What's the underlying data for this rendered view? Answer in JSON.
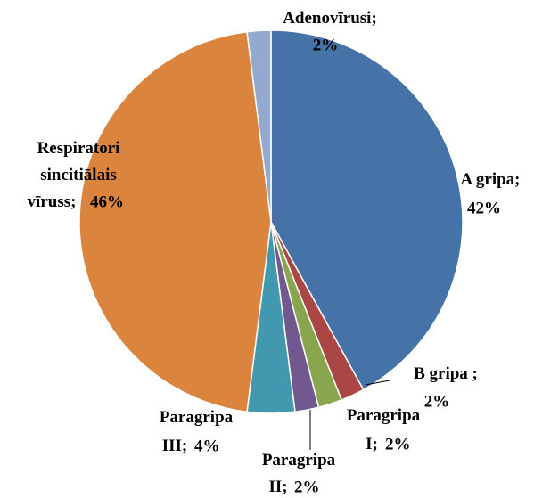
{
  "chart_data": {
    "type": "pie",
    "categories": [
      "A gripa;",
      "B gripa ;",
      "Paragripa\nI;",
      "Paragripa\nII;",
      "Paragripa\nIII;",
      "Respiratori\nsincitiālais\nvīruss;",
      "Adenovīrusi;"
    ],
    "values": [
      42,
      2,
      2,
      2,
      4,
      46,
      2
    ],
    "value_labels": [
      "42%",
      "2%",
      "2%",
      "2%",
      "4%",
      "46%",
      "2%"
    ],
    "colors": [
      "#4572a7",
      "#aa4643",
      "#89a54e",
      "#71588f",
      "#4198af",
      "#db843d",
      "#93a9cf"
    ]
  }
}
